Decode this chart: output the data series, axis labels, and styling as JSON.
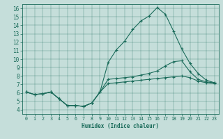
{
  "xlabel": "Humidex (Indice chaleur)",
  "xlim": [
    -0.5,
    23.5
  ],
  "ylim": [
    3.5,
    16.5
  ],
  "yticks": [
    4,
    5,
    6,
    7,
    8,
    9,
    10,
    11,
    12,
    13,
    14,
    15,
    16
  ],
  "xticks": [
    0,
    1,
    2,
    3,
    4,
    5,
    6,
    7,
    8,
    9,
    10,
    11,
    12,
    13,
    14,
    15,
    16,
    17,
    18,
    19,
    20,
    21,
    22,
    23
  ],
  "bg_color": "#c5deda",
  "line_color": "#1a6b5a",
  "curve_top_x": [
    0,
    1,
    2,
    3,
    4,
    5,
    6,
    7,
    8,
    9,
    10,
    11,
    12,
    13,
    14,
    15,
    16,
    17,
    18,
    19,
    20,
    21,
    22,
    23
  ],
  "curve_top_y": [
    6.1,
    5.8,
    5.9,
    6.1,
    5.3,
    4.5,
    4.5,
    4.4,
    4.8,
    6.1,
    9.6,
    11.1,
    12.1,
    13.5,
    14.5,
    15.1,
    16.1,
    15.3,
    13.3,
    11.2,
    9.5,
    8.3,
    7.5,
    7.2
  ],
  "curve_mid_x": [
    0,
    1,
    2,
    3,
    4,
    5,
    6,
    7,
    8,
    9,
    10,
    11,
    12,
    13,
    14,
    15,
    16,
    17,
    18,
    19,
    20,
    21,
    22,
    23
  ],
  "curve_mid_y": [
    6.1,
    5.8,
    5.9,
    6.1,
    5.3,
    4.5,
    4.5,
    4.4,
    4.8,
    6.1,
    7.6,
    7.7,
    7.8,
    7.9,
    8.1,
    8.3,
    8.6,
    9.2,
    9.7,
    9.8,
    8.5,
    7.6,
    7.3,
    7.2
  ],
  "curve_bot_x": [
    0,
    1,
    2,
    3,
    4,
    5,
    6,
    7,
    8,
    9,
    10,
    11,
    12,
    13,
    14,
    15,
    16,
    17,
    18,
    19,
    20,
    21,
    22,
    23
  ],
  "curve_bot_y": [
    6.1,
    5.8,
    5.9,
    6.1,
    5.3,
    4.5,
    4.5,
    4.4,
    4.8,
    6.1,
    7.1,
    7.2,
    7.3,
    7.4,
    7.5,
    7.6,
    7.7,
    7.8,
    7.9,
    8.0,
    7.8,
    7.4,
    7.2,
    7.1
  ]
}
